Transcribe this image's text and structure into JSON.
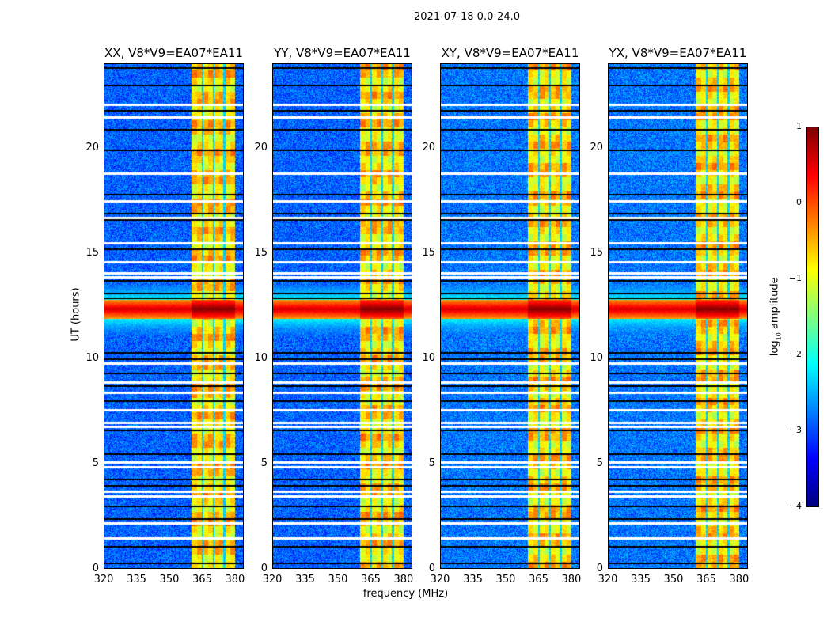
{
  "chart_data": {
    "type": "heatmap",
    "title": "2021-07-18 0.0-24.0",
    "xlabel": "frequency (MHz)",
    "ylabel": "UT (hours)",
    "xlim": [
      320,
      384
    ],
    "ylim": [
      0,
      24
    ],
    "xticks": [
      "320",
      "335",
      "350",
      "365",
      "380"
    ],
    "xtick_values": [
      320,
      335,
      350,
      365,
      380
    ],
    "yticks": [
      "0",
      "5",
      "10",
      "15",
      "20"
    ],
    "ytick_values": [
      0,
      5,
      10,
      15,
      20
    ],
    "panels": [
      {
        "title": "XX, V8*V9=EA07*EA11"
      },
      {
        "title": "YY, V8*V9=EA07*EA11"
      },
      {
        "title": "XY, V8*V9=EA07*EA11"
      },
      {
        "title": "YX, V8*V9=EA07*EA11"
      }
    ],
    "colorbar": {
      "label_prefix": "log",
      "label_sub": "10",
      "label_suffix": " amplitude",
      "range": [
        -4,
        1
      ],
      "ticks": [
        "1",
        "0",
        "−1",
        "−2",
        "−3",
        "−4"
      ],
      "tick_values": [
        1,
        0,
        -1,
        -2,
        -3,
        -4
      ],
      "colormap": "jet"
    },
    "background_level": -2.9,
    "band_mhz": [
      360,
      380
    ],
    "band_level": -0.7,
    "band_gaps_mhz": [
      365,
      370,
      375
    ],
    "rfi_hours": [
      11.9,
      12.8
    ],
    "rfi_level": 0.6,
    "flagged_rows_hours": [
      0.3,
      1.1,
      2.4,
      3.0,
      4.0,
      4.3,
      5.5,
      6.6,
      8.0,
      8.7,
      9.3,
      10.0,
      10.3,
      12.9,
      13.1,
      13.7,
      15.2,
      16.6,
      16.9,
      17.8,
      19.9,
      20.9,
      21.8,
      23.0,
      23.8
    ],
    "empty_rows_hours": [
      1.5,
      2.2,
      3.5,
      3.7,
      4.9,
      5.1,
      6.8,
      7.0,
      7.6,
      8.4,
      8.9,
      9.8,
      13.9,
      14.1,
      14.6,
      15.5,
      16.7,
      17.5,
      18.8,
      21.5,
      22.1
    ]
  }
}
